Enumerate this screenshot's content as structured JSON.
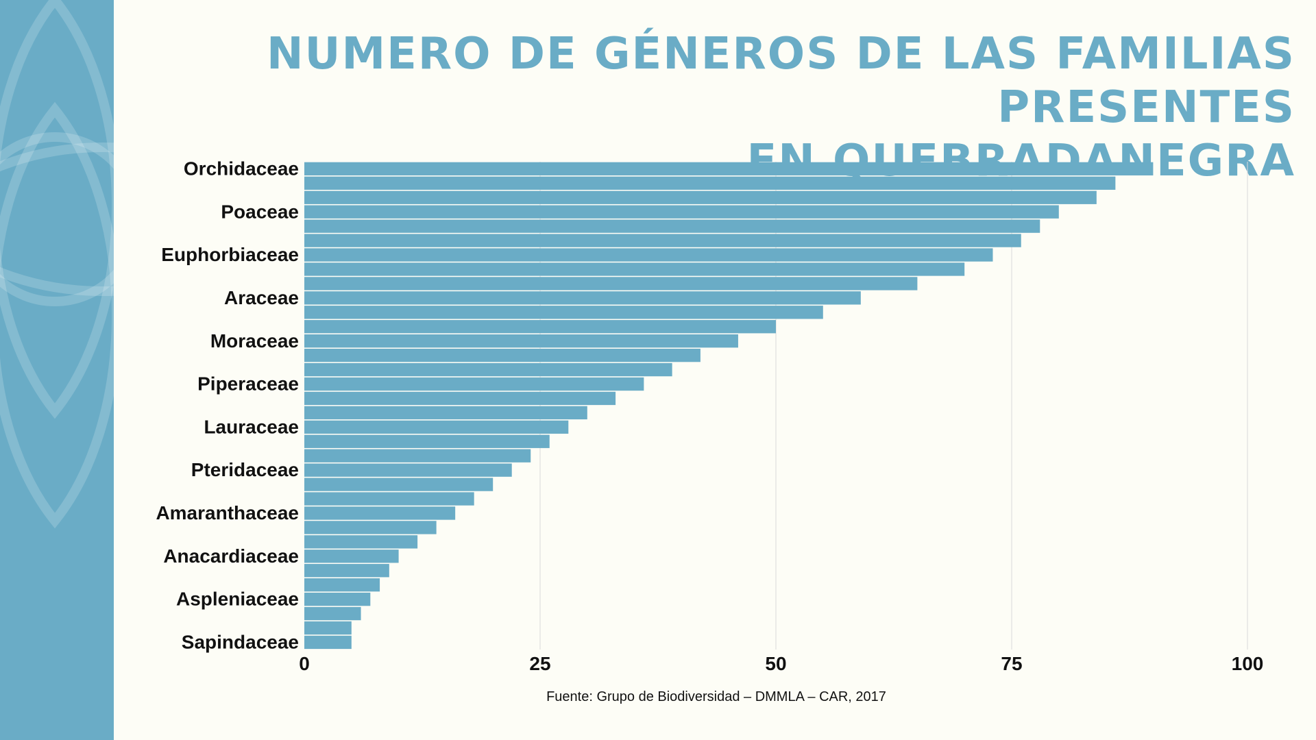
{
  "title_lines": [
    "NUMERO DE GÉNEROS DE LAS FAMILIAS PRESENTES",
    "EN QUEBRADANEGRA"
  ],
  "source": "Fuente: Grupo de Biodiversidad – DMMLA – CAR, 2017",
  "colors": {
    "accent": "#6aacc6",
    "bar": "#6aacc6",
    "background": "#fdfdf6",
    "grid": "#d9d9d9"
  },
  "chart_data": {
    "type": "bar",
    "orientation": "horizontal",
    "title": "NUMERO DE GÉNEROS DE LAS FAMILIAS PRESENTES EN QUEBRADANEGRA",
    "xlabel": "",
    "ylabel": "",
    "xlim": [
      0,
      100
    ],
    "x_ticks": [
      0,
      25,
      50,
      75,
      100
    ],
    "grid": true,
    "categories": [
      "Orchidaceae",
      "",
      "",
      "Poaceae",
      "",
      "",
      "Euphorbiaceae",
      "",
      "",
      "Araceae",
      "",
      "",
      "Moraceae",
      "",
      "",
      "Piperaceae",
      "",
      "",
      "Lauraceae",
      "",
      "",
      "Pteridaceae",
      "",
      "",
      "Amaranthaceae",
      "",
      "",
      "Anacardiaceae",
      "",
      "",
      "Aspleniaceae",
      "",
      "",
      "Sapindaceae"
    ],
    "values": [
      90,
      86,
      84,
      80,
      78,
      76,
      73,
      70,
      65,
      59,
      55,
      50,
      46,
      42,
      39,
      36,
      33,
      30,
      28,
      26,
      24,
      22,
      20,
      18,
      16,
      14,
      12,
      10,
      9,
      8,
      7,
      6,
      5,
      5
    ]
  }
}
